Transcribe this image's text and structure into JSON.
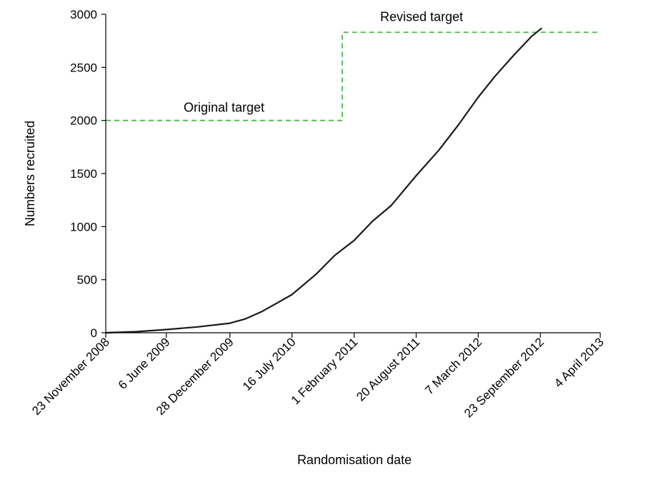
{
  "chart_data": {
    "type": "line",
    "title": "",
    "xlabel": "Randomisation date",
    "ylabel": "Numbers recruited",
    "ylim": [
      0,
      3000
    ],
    "yticks": [
      0,
      500,
      1000,
      1500,
      2000,
      2500,
      3000
    ],
    "xlim": [
      "2008-11-23",
      "2013-04-04"
    ],
    "xticks": [
      {
        "date": "2008-11-23",
        "label": "23 November 2008"
      },
      {
        "date": "2009-06-06",
        "label": "6 June 2009"
      },
      {
        "date": "2009-12-28",
        "label": "28 December 2009"
      },
      {
        "date": "2010-07-16",
        "label": "16 July 2010"
      },
      {
        "date": "2011-02-01",
        "label": "1 February 2011"
      },
      {
        "date": "2011-08-20",
        "label": "20 August 2011"
      },
      {
        "date": "2012-03-07",
        "label": "7 March 2012"
      },
      {
        "date": "2012-09-23",
        "label": "23 September 2012"
      },
      {
        "date": "2013-04-04",
        "label": "4 April 2013"
      }
    ],
    "grid": false,
    "series": [
      {
        "name": "",
        "color": "#1a1a1a",
        "points": [
          {
            "x": "2008-11-23",
            "y": 0
          },
          {
            "x": "2009-03-01",
            "y": 10
          },
          {
            "x": "2009-06-06",
            "y": 30
          },
          {
            "x": "2009-09-15",
            "y": 55
          },
          {
            "x": "2009-12-28",
            "y": 90
          },
          {
            "x": "2010-02-15",
            "y": 130
          },
          {
            "x": "2010-04-10",
            "y": 200
          },
          {
            "x": "2010-07-16",
            "y": 360
          },
          {
            "x": "2010-10-01",
            "y": 550
          },
          {
            "x": "2010-12-01",
            "y": 730
          },
          {
            "x": "2011-02-01",
            "y": 870
          },
          {
            "x": "2011-04-01",
            "y": 1050
          },
          {
            "x": "2011-06-01",
            "y": 1200
          },
          {
            "x": "2011-08-20",
            "y": 1480
          },
          {
            "x": "2011-11-01",
            "y": 1720
          },
          {
            "x": "2012-01-01",
            "y": 1950
          },
          {
            "x": "2012-03-07",
            "y": 2220
          },
          {
            "x": "2012-05-01",
            "y": 2420
          },
          {
            "x": "2012-07-01",
            "y": 2620
          },
          {
            "x": "2012-08-25",
            "y": 2790
          },
          {
            "x": "2012-09-28",
            "y": 2870
          }
        ]
      }
    ],
    "targets": [
      {
        "label": "Original target",
        "value": 2000,
        "x_start": "2008-11-23",
        "x_end": "2010-12-25",
        "color": "#4cb848"
      },
      {
        "label": "Revised target",
        "value": 2830,
        "x_start": "2010-12-25",
        "x_end": "2013-04-04",
        "color": "#4cb848"
      }
    ]
  }
}
